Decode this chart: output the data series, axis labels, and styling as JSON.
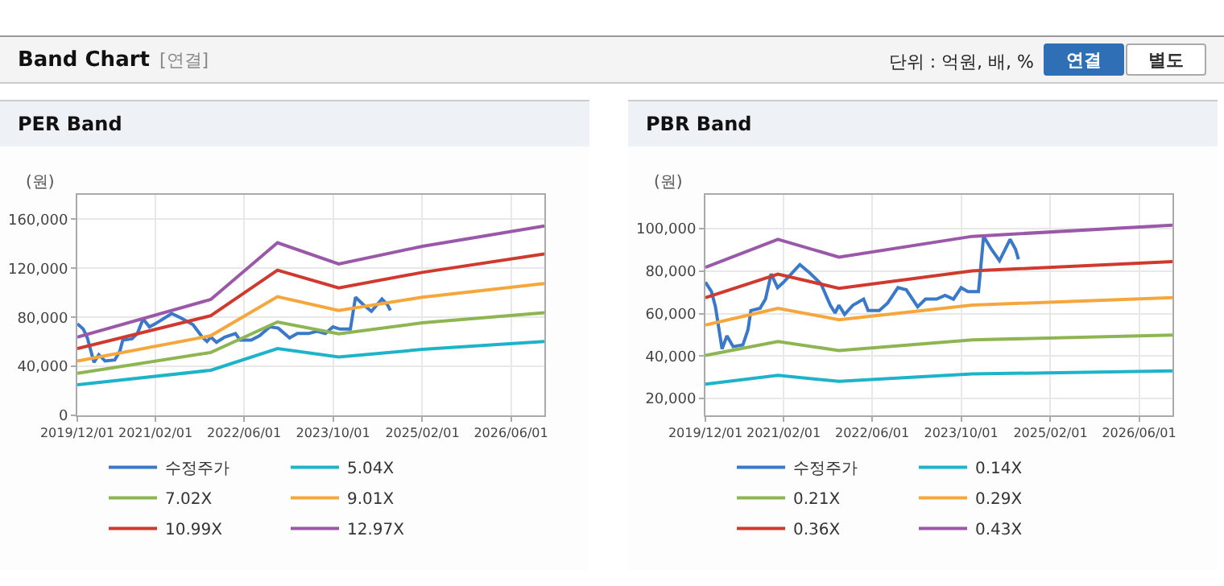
{
  "chart_data": [
    {
      "type": "other",
      "title": "Band Chart",
      "annotations": [
        "[연결]",
        "단위 : 억원, 배, %",
        "연결",
        "별도"
      ]
    },
    {
      "type": "line",
      "title": "PER Band",
      "ylabel": "(원)",
      "grid": true,
      "legend": "bottom",
      "marker": "none",
      "line_style": "solid",
      "xlim": [
        "2019-12-01",
        "2026-12-01"
      ],
      "xticks": [
        {
          "value": "2019-12-01",
          "label": "2019/12/01"
        },
        {
          "value": "2021-02-01",
          "label": "2021/02/01"
        },
        {
          "value": "2022-06-01",
          "label": "2022/06/01"
        },
        {
          "value": "2023-10-01",
          "label": "2023/10/01"
        },
        {
          "value": "2025-02-01",
          "label": "2025/02/01"
        },
        {
          "value": "2026-06-01",
          "label": "2026/06/01"
        }
      ],
      "ylim": [
        0,
        180000
      ],
      "yticks": [
        {
          "value": 0,
          "label": "0"
        },
        {
          "value": 40000,
          "label": "40,000"
        },
        {
          "value": 80000,
          "label": "80,000"
        },
        {
          "value": 120000,
          "label": "120,000"
        },
        {
          "value": 160000,
          "label": "160,000"
        }
      ],
      "series": [
        {
          "name": "수정주가",
          "color": "#3a78c9",
          "x": [
            "2019-12-01",
            "2020-01-03",
            "2020-01-25",
            "2020-03-01",
            "2020-03-28",
            "2020-05-01",
            "2020-06-23",
            "2020-07-21",
            "2020-08-06",
            "2020-09-25",
            "2020-10-25",
            "2020-11-25",
            "2020-12-30",
            "2021-02-01",
            "2021-05-01",
            "2021-06-20",
            "2021-08-25",
            "2021-10-15",
            "2021-11-10",
            "2021-12-01",
            "2022-01-01",
            "2022-02-15",
            "2022-04-15",
            "2022-05-10",
            "2022-07-10",
            "2022-08-25",
            "2022-10-20",
            "2022-12-05",
            "2023-02-05",
            "2023-03-20",
            "2023-05-20",
            "2023-07-05",
            "2023-08-20",
            "2023-10-01",
            "2023-11-07",
            "2024-01-04",
            "2024-02-01",
            "2024-03-15",
            "2024-04-28",
            "2024-06-25",
            "2024-07-25",
            "2024-08-10"
          ],
          "values": [
            74800,
            70400,
            63200,
            43300,
            49500,
            44400,
            45200,
            52400,
            61400,
            62500,
            66800,
            78700,
            72200,
            74800,
            83100,
            79500,
            74000,
            63900,
            60300,
            63900,
            59600,
            63900,
            66800,
            61400,
            61400,
            65000,
            72200,
            71200,
            63200,
            66800,
            66800,
            68600,
            66800,
            72200,
            70400,
            70400,
            96400,
            90300,
            84900,
            95000,
            90300,
            85600
          ]
        },
        {
          "name": "5.04X",
          "color": "#1db3c8",
          "x": [
            "2019-12-01",
            "2021-12-01",
            "2022-12-01",
            "2023-11-01",
            "2025-02-01",
            "2026-12-01"
          ],
          "values": [
            24900,
            36800,
            54500,
            47700,
            53800,
            60300
          ]
        },
        {
          "name": "7.02X",
          "color": "#8db552",
          "x": [
            "2019-12-01",
            "2021-12-01",
            "2022-12-01",
            "2023-11-01",
            "2025-02-01",
            "2026-12-01"
          ],
          "values": [
            34300,
            51300,
            76200,
            66500,
            75500,
            83800
          ]
        },
        {
          "name": "9.01X",
          "color": "#f5a73c",
          "x": [
            "2019-12-01",
            "2021-12-01",
            "2022-12-01",
            "2023-11-01",
            "2025-02-01",
            "2026-12-01"
          ],
          "values": [
            44400,
            65000,
            96800,
            85600,
            96400,
            107600
          ]
        },
        {
          "name": "10.99X",
          "color": "#d03a2e",
          "x": [
            "2019-12-01",
            "2021-12-01",
            "2022-12-01",
            "2023-11-01",
            "2025-02-01",
            "2026-12-01"
          ],
          "values": [
            54500,
            81300,
            118500,
            104000,
            116700,
            131800
          ]
        },
        {
          "name": "12.97X",
          "color": "#9b58a8",
          "x": [
            "2019-12-01",
            "2021-12-01",
            "2022-12-01",
            "2023-11-01",
            "2025-02-01",
            "2026-12-01"
          ],
          "values": [
            63900,
            94600,
            140900,
            123500,
            138000,
            154600
          ]
        }
      ]
    },
    {
      "type": "line",
      "title": "PBR Band",
      "ylabel": "(원)",
      "grid": true,
      "legend": "bottom",
      "marker": "none",
      "line_style": "solid",
      "xlim": [
        "2019-12-01",
        "2026-12-01"
      ],
      "xticks": [
        {
          "value": "2019-12-01",
          "label": "2019/12/01"
        },
        {
          "value": "2021-02-01",
          "label": "2021/02/01"
        },
        {
          "value": "2022-06-01",
          "label": "2022/06/01"
        },
        {
          "value": "2023-10-01",
          "label": "2023/10/01"
        },
        {
          "value": "2025-02-01",
          "label": "2025/02/01"
        },
        {
          "value": "2026-06-01",
          "label": "2026/06/01"
        }
      ],
      "ylim": [
        12000,
        116000
      ],
      "yticks": [
        {
          "value": 20000,
          "label": "20,000"
        },
        {
          "value": 40000,
          "label": "40,000"
        },
        {
          "value": 60000,
          "label": "60,000"
        },
        {
          "value": 80000,
          "label": "80,000"
        },
        {
          "value": 100000,
          "label": "100,000"
        }
      ],
      "series": [
        {
          "name": "수정주가",
          "color": "#3a78c9",
          "x": [
            "2019-12-01",
            "2020-01-03",
            "2020-01-25",
            "2020-03-01",
            "2020-03-28",
            "2020-05-01",
            "2020-06-23",
            "2020-07-21",
            "2020-08-06",
            "2020-09-25",
            "2020-10-25",
            "2020-11-25",
            "2020-12-30",
            "2021-02-01",
            "2021-05-01",
            "2021-06-20",
            "2021-08-25",
            "2021-10-15",
            "2021-11-10",
            "2021-12-01",
            "2022-01-01",
            "2022-02-15",
            "2022-04-15",
            "2022-05-10",
            "2022-07-10",
            "2022-08-25",
            "2022-10-20",
            "2022-12-05",
            "2023-02-05",
            "2023-03-20",
            "2023-05-20",
            "2023-07-05",
            "2023-08-20",
            "2023-10-01",
            "2023-11-07",
            "2024-01-04",
            "2024-02-01",
            "2024-03-15",
            "2024-04-28",
            "2024-06-25",
            "2024-07-25",
            "2024-08-10"
          ],
          "values": [
            74800,
            70400,
            63200,
            43300,
            49500,
            44400,
            45200,
            52400,
            61400,
            62500,
            66800,
            78700,
            72200,
            74800,
            83100,
            79500,
            74000,
            63900,
            60300,
            63900,
            59600,
            63900,
            66800,
            61400,
            61400,
            65000,
            72200,
            71200,
            63200,
            66800,
            66800,
            68600,
            66800,
            72200,
            70400,
            70400,
            96400,
            90300,
            84900,
            95000,
            90300,
            85600
          ]
        },
        {
          "name": "0.14X",
          "color": "#1db3c8",
          "x": [
            "2019-12-01",
            "2021-01-01",
            "2021-12-01",
            "2023-12-01",
            "2026-12-01"
          ],
          "values": [
            26700,
            30900,
            28000,
            31500,
            33000
          ]
        },
        {
          "name": "0.21X",
          "color": "#8db552",
          "x": [
            "2019-12-01",
            "2021-01-01",
            "2021-12-01",
            "2023-12-01",
            "2026-12-01"
          ],
          "values": [
            40300,
            46800,
            42600,
            47600,
            49900
          ]
        },
        {
          "name": "0.29X",
          "color": "#f5a73c",
          "x": [
            "2019-12-01",
            "2021-01-01",
            "2021-12-01",
            "2023-12-01",
            "2026-12-01"
          ],
          "values": [
            54600,
            62500,
            57100,
            64000,
            67500
          ]
        },
        {
          "name": "0.36X",
          "color": "#d03a2e",
          "x": [
            "2019-12-01",
            "2021-01-01",
            "2021-12-01",
            "2023-12-01",
            "2026-12-01"
          ],
          "values": [
            67500,
            78600,
            71900,
            80100,
            84500
          ]
        },
        {
          "name": "0.43X",
          "color": "#9b58a8",
          "x": [
            "2019-12-01",
            "2021-01-01",
            "2021-12-01",
            "2023-12-01",
            "2026-12-01"
          ],
          "values": [
            81800,
            95000,
            86600,
            96400,
            101700
          ]
        }
      ]
    }
  ]
}
